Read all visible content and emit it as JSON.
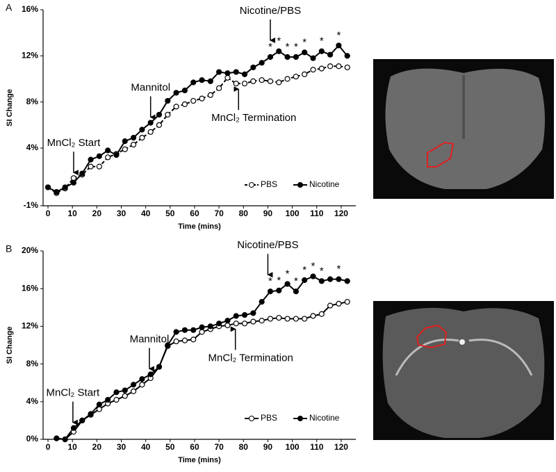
{
  "chart_data": [
    {
      "type": "line",
      "panel": "A",
      "y_label": "SI Change",
      "x_label": "Time (mins)",
      "x": [
        0,
        3.5,
        7,
        10.5,
        14,
        17.5,
        21,
        24.5,
        28,
        31.5,
        35,
        38.5,
        42,
        45.5,
        49,
        52.5,
        56,
        59.5,
        63,
        66.5,
        70,
        73.5,
        77,
        80.5,
        84,
        87.5,
        91,
        94.5,
        98,
        101.5,
        105,
        108.5,
        112,
        115.5,
        119,
        122.5
      ],
      "series": [
        {
          "name": "PBS",
          "color": "#000000",
          "marker_fill": "#ffffff",
          "dashed": true,
          "values": [
            0.6,
            0.1,
            0.5,
            1.4,
            1.7,
            2.4,
            2.4,
            3.2,
            3.5,
            3.9,
            4.3,
            4.9,
            5.4,
            6.0,
            6.9,
            7.6,
            7.8,
            8.1,
            8.3,
            8.6,
            9.2,
            10.1,
            9.6,
            9.6,
            9.8,
            9.9,
            9.8,
            9.7,
            10.0,
            10.2,
            10.4,
            10.8,
            10.9,
            11.1,
            11.1,
            11.0
          ]
        },
        {
          "name": "Nicotine",
          "color": "#000000",
          "marker_fill": "#000000",
          "dashed": false,
          "values": [
            0.6,
            0.2,
            0.6,
            1.0,
            1.8,
            3.0,
            3.3,
            3.8,
            3.4,
            4.6,
            4.9,
            5.6,
            6.2,
            6.9,
            8.1,
            8.8,
            9.0,
            9.7,
            9.9,
            9.8,
            10.6,
            10.5,
            10.6,
            10.4,
            11.0,
            11.4,
            11.9,
            12.4,
            11.9,
            11.9,
            12.3,
            11.8,
            12.4,
            12.1,
            12.9,
            12.0
          ]
        }
      ],
      "xlim": [
        -2,
        126
      ],
      "xticks": [
        0,
        10,
        20,
        30,
        40,
        50,
        60,
        70,
        80,
        90,
        100,
        110,
        120
      ],
      "ylim": [
        -1,
        16
      ],
      "yticks": [
        {
          "value": -1,
          "label": "-1%"
        },
        {
          "value": 4,
          "label": "4%"
        },
        {
          "value": 8,
          "label": "8%"
        },
        {
          "value": 12,
          "label": "12%"
        },
        {
          "value": 16,
          "label": "16%"
        }
      ],
      "grid": false,
      "legend": "lower right",
      "annotations": [
        {
          "text": "MnCl₂ Start",
          "x": 10.5,
          "direction": "down"
        },
        {
          "text": "Mannitol",
          "x": 42,
          "direction": "down"
        },
        {
          "text": "MnCl₂ Termination",
          "x": 78,
          "direction": "up"
        },
        {
          "text": "Nicotine/PBS",
          "x": 91,
          "direction": "down"
        }
      ],
      "significance": {
        "label": "*",
        "x": [
          91,
          94.5,
          98,
          101.5,
          105,
          112,
          119
        ]
      }
    },
    {
      "type": "line",
      "panel": "B",
      "y_label": "SI Change",
      "x_label": "Time (mins)",
      "x": [
        3.5,
        7,
        10.5,
        14,
        17.5,
        21,
        24.5,
        28,
        31.5,
        35,
        38.5,
        42,
        45.5,
        49,
        52.5,
        56,
        59.5,
        63,
        66.5,
        70,
        73.5,
        77,
        80.5,
        84,
        87.5,
        91,
        94.5,
        98,
        101.5,
        105,
        108.5,
        112,
        115.5,
        119,
        122.5
      ],
      "series": [
        {
          "name": "PBS",
          "color": "#000000",
          "marker_fill": "#ffffff",
          "dashed": false,
          "values": [
            0.1,
            0,
            0.8,
            2.0,
            2.6,
            3.2,
            3.8,
            4.2,
            4.6,
            5.1,
            5.8,
            6.5,
            7.7,
            9.9,
            10.4,
            10.5,
            10.6,
            11.4,
            11.7,
            12.0,
            12.1,
            12.3,
            12.3,
            12.5,
            12.6,
            12.8,
            12.9,
            12.8,
            12.8,
            12.8,
            13.1,
            13.3,
            14.2,
            14.4,
            14.6
          ]
        },
        {
          "name": "Nicotine",
          "color": "#000000",
          "marker_fill": "#000000",
          "dashed": false,
          "values": [
            0.1,
            0,
            1.2,
            2.0,
            2.7,
            3.7,
            4.2,
            5.0,
            5.2,
            5.8,
            6.4,
            6.9,
            7.7,
            10.0,
            11.4,
            11.6,
            11.6,
            11.9,
            12.0,
            12.3,
            12.6,
            13.1,
            13.2,
            13.4,
            14.6,
            15.7,
            15.8,
            16.5,
            15.7,
            16.9,
            17.3,
            16.8,
            17.0,
            17.0,
            16.8
          ]
        }
      ],
      "xlim": [
        -2,
        126
      ],
      "xticks": [
        0,
        10,
        20,
        30,
        40,
        50,
        60,
        70,
        80,
        90,
        100,
        110,
        120
      ],
      "ylim": [
        0,
        20
      ],
      "yticks": [
        {
          "value": 0,
          "label": "0%"
        },
        {
          "value": 4,
          "label": "4%"
        },
        {
          "value": 8,
          "label": "8%"
        },
        {
          "value": 12,
          "label": "12%"
        },
        {
          "value": 16,
          "label": "16%"
        },
        {
          "value": 20,
          "label": "20%"
        }
      ],
      "grid": false,
      "legend": "lower right",
      "annotations": [
        {
          "text": "MnCl₂ Start",
          "x": 10.2,
          "direction": "down"
        },
        {
          "text": "Mannitol",
          "x": 41.5,
          "direction": "down"
        },
        {
          "text": "MnCl₂ Termination",
          "x": 76.7,
          "direction": "up"
        },
        {
          "text": "Nicotine/PBS",
          "x": 90,
          "direction": "down"
        }
      ],
      "significance": {
        "label": "*",
        "x": [
          91,
          94.5,
          98,
          101.5,
          105,
          108.5,
          112,
          119
        ]
      }
    }
  ]
}
